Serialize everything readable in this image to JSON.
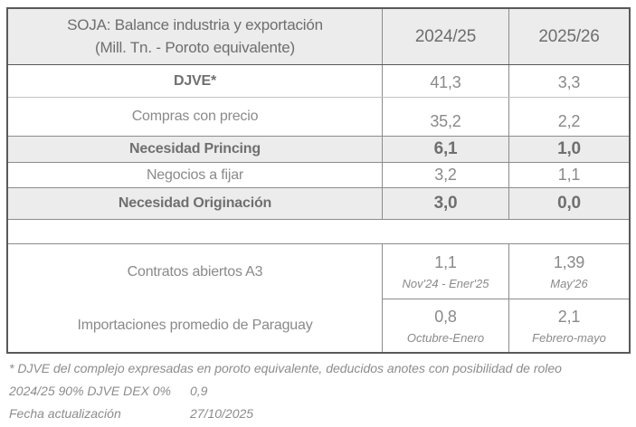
{
  "table": {
    "header": {
      "title_line1": "SOJA: Balance industria y exportación",
      "title_line2": "(Mill. Tn. - Poroto equivalente)",
      "col_2024_25": "2024/25",
      "col_2025_26": "2025/26"
    },
    "rows": [
      {
        "label": "DJVE*",
        "v2024": "41,3",
        "v2025": "3,3"
      },
      {
        "label": "Compras con precio",
        "v2024": "35,2",
        "v2025": "2,2"
      },
      {
        "label": "Necesidad Princing",
        "v2024": "6,1",
        "v2025": "1,0"
      },
      {
        "label": "Negocios a fijar",
        "v2024": "3,2",
        "v2025": "1,1"
      },
      {
        "label": "Necesidad Originación",
        "v2024": "3,0",
        "v2025": "0,0"
      }
    ],
    "detail_rows": [
      {
        "label": "Contratos abiertos A3",
        "v2024": "1,1",
        "period2024": "Nov'24 - Ener'25",
        "v2025": "1,39",
        "period2025": "May'26"
      },
      {
        "label": "Importaciones promedio de Paraguay",
        "v2024": "0,8",
        "period2024": "Octubre-Enero",
        "v2025": "2,1",
        "period2025": "Febrero-mayo"
      }
    ]
  },
  "footnotes": {
    "line1": "* DJVE del complejo expresadas en poroto equivalente, deducidos anotes con posibilidad de roleo",
    "line2_label": "2024/25 90% DJVE DEX 0%",
    "line2_value": "0,9",
    "line3_label": "Fecha actualización",
    "line3_value": "27/10/2025"
  },
  "colors": {
    "outer_border": "#595959",
    "inner_line": "#8c8c8c",
    "shaded_row_bg": "#ececec",
    "text_regular": "#8a8a8a",
    "text_bold": "#6f6f6f"
  }
}
